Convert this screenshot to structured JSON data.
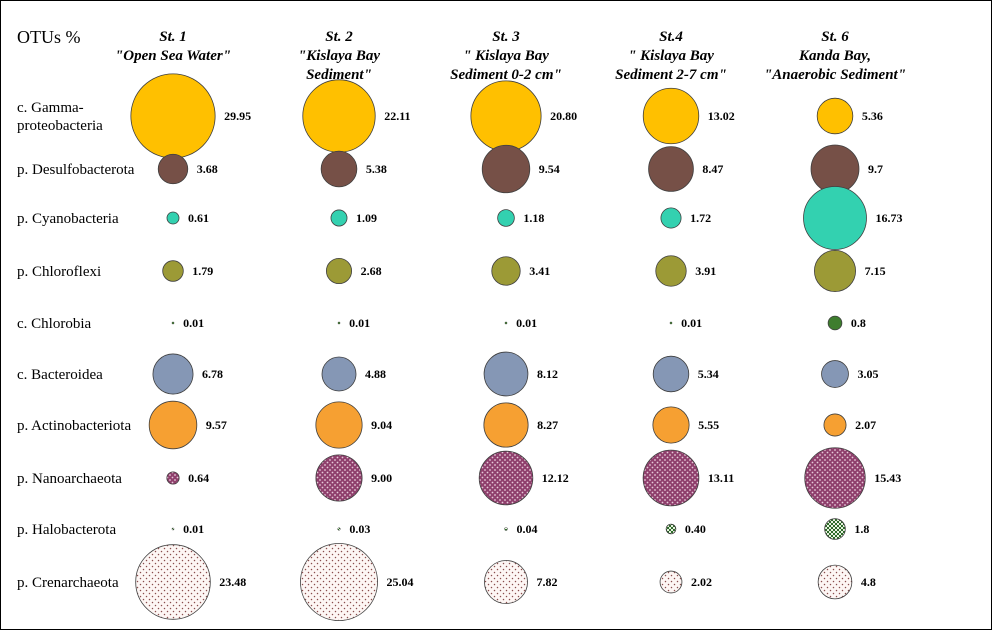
{
  "chart_data": {
    "type": "bubble",
    "corner_label": "OTUs %",
    "stations": [
      {
        "name": "St. 1",
        "title": [
          "St. 1",
          "\"Open Sea Water\""
        ]
      },
      {
        "name": "St. 2",
        "title": [
          "St. 2",
          "\"Kislaya Bay",
          "Sediment\""
        ]
      },
      {
        "name": "St. 3",
        "title": [
          "St. 3",
          "\" Kislaya Bay",
          "Sediment 0-2 cm\""
        ]
      },
      {
        "name": "St.4",
        "title": [
          "St.4",
          "\" Kislaya Bay",
          "Sediment 2-7 cm\""
        ]
      },
      {
        "name": "St. 6",
        "title": [
          "St. 6",
          "Kanda Bay,",
          "\"Anaerobic Sediment\""
        ]
      }
    ],
    "taxa": [
      {
        "label": [
          "c. Gamma-",
          "proteobacteria"
        ],
        "color": "#ffc000",
        "pattern": "solid",
        "values": [
          29.95,
          22.11,
          20.8,
          13.02,
          5.36
        ],
        "value_labels": [
          "29.95",
          "22.11",
          "20.80",
          "13.02",
          "5.36"
        ]
      },
      {
        "label": [
          "p. Desulfobacterota"
        ],
        "color": "#765047",
        "pattern": "solid",
        "values": [
          3.68,
          5.38,
          9.54,
          8.47,
          9.7
        ],
        "value_labels": [
          "3.68",
          "5.38",
          "9.54",
          "8.47",
          "9.7"
        ]
      },
      {
        "label": [
          "p. Cyanobacteria"
        ],
        "color": "#33d1b0",
        "pattern": "solid",
        "values": [
          0.61,
          1.09,
          1.18,
          1.72,
          16.73
        ],
        "value_labels": [
          "0.61",
          "1.09",
          "1.18",
          "1.72",
          "16.73"
        ]
      },
      {
        "label": [
          "p. Chloroflexi"
        ],
        "color": "#9c9a36",
        "pattern": "solid",
        "values": [
          1.79,
          2.68,
          3.41,
          3.91,
          7.15
        ],
        "value_labels": [
          "1.79",
          "2.68",
          "3.41",
          "3.91",
          "7.15"
        ]
      },
      {
        "label": [
          "c. Chlorobia"
        ],
        "color": "#3e7d2e",
        "pattern": "solid",
        "values": [
          0.01,
          0.01,
          0.01,
          0.01,
          0.8
        ],
        "value_labels": [
          "0.01",
          "0.01",
          "0.01",
          "0.01",
          "0.8"
        ]
      },
      {
        "label": [
          "c. Bacteroidea"
        ],
        "color": "#8597b5",
        "pattern": "solid",
        "values": [
          6.78,
          4.88,
          8.12,
          5.34,
          3.05
        ],
        "value_labels": [
          "6.78",
          "4.88",
          "8.12",
          "5.34",
          "3.05"
        ]
      },
      {
        "label": [
          "p. Actinobacteriota"
        ],
        "color": "#f6a032",
        "pattern": "solid",
        "values": [
          9.57,
          9.04,
          8.27,
          5.55,
          2.07
        ],
        "value_labels": [
          "9.57",
          "9.04",
          "8.27",
          "5.55",
          "2.07"
        ]
      },
      {
        "label": [
          "p. Nanoarchaeota"
        ],
        "color": "#a5527e",
        "pattern": "dots-light",
        "values": [
          0.64,
          9.0,
          12.12,
          13.11,
          15.43
        ],
        "value_labels": [
          "0.64",
          "9.00",
          "12.12",
          "13.11",
          "15.43"
        ]
      },
      {
        "label": [
          "p. Halobacterota"
        ],
        "color": "#2e6b2a",
        "pattern": "checker",
        "values": [
          0.01,
          0.03,
          0.04,
          0.4,
          1.8
        ],
        "value_labels": [
          "0.01",
          "0.03",
          "0.04",
          "0.40",
          "1.8"
        ]
      },
      {
        "label": [
          "p. Crenarchaeota"
        ],
        "color": "#9a6a6a",
        "pattern": "dots-sparse",
        "values": [
          23.48,
          25.04,
          7.82,
          2.02,
          4.8
        ],
        "value_labels": [
          "23.48",
          "25.04",
          "7.82",
          "2.02",
          "4.8"
        ]
      }
    ]
  }
}
